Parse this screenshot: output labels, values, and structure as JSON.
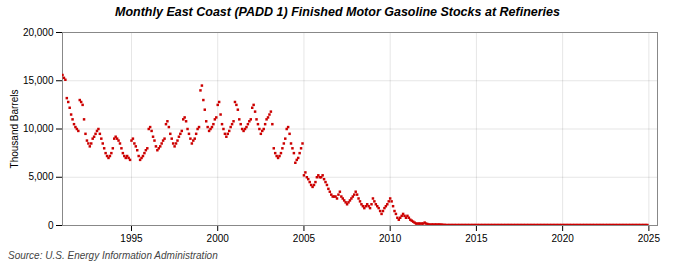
{
  "chart_data": {
    "type": "scatter",
    "title": "Monthly East Coast (PADD 1) Finished Motor Gasoline Stocks at Refineries",
    "y_label": "Thousand Barrels",
    "annotations": [
      "Source: U.S. Energy Information Administration"
    ],
    "color": "#cc0000",
    "marker": "square",
    "grid": true,
    "xlim": [
      1991.0,
      2025.5
    ],
    "xticks": [
      1995,
      2000,
      2005,
      2010,
      2015,
      2020,
      2025
    ],
    "ylim": [
      0,
      20000
    ],
    "yticks": [
      0,
      {
        "value": 5000,
        "label": "5,000"
      },
      {
        "value": 10000,
        "label": "10,000"
      },
      {
        "value": 15000,
        "label": "15,000"
      },
      {
        "value": 20000,
        "label": "20,000"
      }
    ],
    "x": [
      1991.0,
      1991.083,
      1991.167,
      1991.25,
      1991.333,
      1991.417,
      1991.5,
      1991.583,
      1991.667,
      1991.75,
      1991.833,
      1991.917,
      1992.0,
      1992.083,
      1992.167,
      1992.25,
      1992.333,
      1992.417,
      1992.5,
      1992.583,
      1992.667,
      1992.75,
      1992.833,
      1992.917,
      1993.0,
      1993.083,
      1993.167,
      1993.25,
      1993.333,
      1993.417,
      1993.5,
      1993.583,
      1993.667,
      1993.75,
      1993.833,
      1993.917,
      1994.0,
      1994.083,
      1994.167,
      1994.25,
      1994.333,
      1994.417,
      1994.5,
      1994.583,
      1994.667,
      1994.75,
      1994.833,
      1994.917,
      1995.0,
      1995.083,
      1995.167,
      1995.25,
      1995.333,
      1995.417,
      1995.5,
      1995.583,
      1995.667,
      1995.75,
      1995.833,
      1995.917,
      1996.0,
      1996.083,
      1996.167,
      1996.25,
      1996.333,
      1996.417,
      1996.5,
      1996.583,
      1996.667,
      1996.75,
      1996.833,
      1996.917,
      1997.0,
      1997.083,
      1997.167,
      1997.25,
      1997.333,
      1997.417,
      1997.5,
      1997.583,
      1997.667,
      1997.75,
      1997.833,
      1997.917,
      1998.0,
      1998.083,
      1998.167,
      1998.25,
      1998.333,
      1998.417,
      1998.5,
      1998.583,
      1998.667,
      1998.75,
      1998.833,
      1998.917,
      1999.0,
      1999.083,
      1999.167,
      1999.25,
      1999.333,
      1999.417,
      1999.5,
      1999.583,
      1999.667,
      1999.75,
      1999.833,
      1999.917,
      2000.0,
      2000.083,
      2000.167,
      2000.25,
      2000.333,
      2000.417,
      2000.5,
      2000.583,
      2000.667,
      2000.75,
      2000.833,
      2000.917,
      2001.0,
      2001.083,
      2001.167,
      2001.25,
      2001.333,
      2001.417,
      2001.5,
      2001.583,
      2001.667,
      2001.75,
      2001.833,
      2001.917,
      2002.0,
      2002.083,
      2002.167,
      2002.25,
      2002.333,
      2002.417,
      2002.5,
      2002.583,
      2002.667,
      2002.75,
      2002.833,
      2002.917,
      2003.0,
      2003.083,
      2003.167,
      2003.25,
      2003.333,
      2003.417,
      2003.5,
      2003.583,
      2003.667,
      2003.75,
      2003.833,
      2003.917,
      2004.0,
      2004.083,
      2004.167,
      2004.25,
      2004.333,
      2004.417,
      2004.5,
      2004.583,
      2004.667,
      2004.75,
      2004.833,
      2004.917,
      2005.0,
      2005.083,
      2005.167,
      2005.25,
      2005.333,
      2005.417,
      2005.5,
      2005.583,
      2005.667,
      2005.75,
      2005.833,
      2005.917,
      2006.0,
      2006.083,
      2006.167,
      2006.25,
      2006.333,
      2006.417,
      2006.5,
      2006.583,
      2006.667,
      2006.75,
      2006.833,
      2006.917,
      2007.0,
      2007.083,
      2007.167,
      2007.25,
      2007.333,
      2007.417,
      2007.5,
      2007.583,
      2007.667,
      2007.75,
      2007.833,
      2007.917,
      2008.0,
      2008.083,
      2008.167,
      2008.25,
      2008.333,
      2008.417,
      2008.5,
      2008.583,
      2008.667,
      2008.75,
      2008.833,
      2008.917,
      2009.0,
      2009.083,
      2009.167,
      2009.25,
      2009.333,
      2009.417,
      2009.5,
      2009.583,
      2009.667,
      2009.75,
      2009.833,
      2009.917,
      2010.0,
      2010.083,
      2010.167,
      2010.25,
      2010.333,
      2010.417,
      2010.5,
      2010.583,
      2010.667,
      2010.75,
      2010.833,
      2010.917,
      2011.0,
      2011.083,
      2011.167,
      2011.25,
      2011.333,
      2011.417,
      2011.5,
      2011.583,
      2011.667,
      2011.75,
      2011.833,
      2011.917,
      2012.0,
      2012.083,
      2012.167,
      2012.25,
      2012.333,
      2012.417,
      2012.5,
      2012.583,
      2012.667,
      2012.75,
      2012.833,
      2012.917,
      2013.0,
      2013.083,
      2013.167,
      2013.25,
      2013.333,
      2013.417,
      2013.5,
      2013.583,
      2013.667,
      2013.75,
      2013.833,
      2013.917,
      2014.0,
      2014.083,
      2014.167,
      2014.25,
      2014.333,
      2014.417,
      2014.5,
      2014.583,
      2014.667,
      2014.75,
      2014.833,
      2014.917,
      2015.0,
      2015.083,
      2015.167,
      2015.25,
      2015.333,
      2015.417,
      2015.5,
      2015.583,
      2015.667,
      2015.75,
      2015.833,
      2015.917,
      2016.0,
      2016.083,
      2016.167,
      2016.25,
      2016.333,
      2016.417,
      2016.5,
      2016.583,
      2016.667,
      2016.75,
      2016.833,
      2016.917,
      2017.0,
      2017.083,
      2017.167,
      2017.25,
      2017.333,
      2017.417,
      2017.5,
      2017.583,
      2017.667,
      2017.75,
      2017.833,
      2017.917,
      2018.0,
      2018.083,
      2018.167,
      2018.25,
      2018.333,
      2018.417,
      2018.5,
      2018.583,
      2018.667,
      2018.75,
      2018.833,
      2018.917,
      2019.0,
      2019.083,
      2019.167,
      2019.25,
      2019.333,
      2019.417,
      2019.5,
      2019.583,
      2019.667,
      2019.75,
      2019.833,
      2019.917,
      2020.0,
      2020.083,
      2020.167,
      2020.25,
      2020.333,
      2020.417,
      2020.5,
      2020.583,
      2020.667,
      2020.75,
      2020.833,
      2020.917,
      2021.0,
      2021.083,
      2021.167,
      2021.25,
      2021.333,
      2021.417,
      2021.5,
      2021.583,
      2021.667,
      2021.75,
      2021.833,
      2021.917,
      2022.0,
      2022.083,
      2022.167,
      2022.25,
      2022.333,
      2022.417,
      2022.5,
      2022.583,
      2022.667,
      2022.75,
      2022.833,
      2022.917,
      2023.0,
      2023.083,
      2023.167,
      2023.25,
      2023.333,
      2023.417,
      2023.5,
      2023.583,
      2023.667,
      2023.75,
      2023.833,
      2023.917,
      2024.0,
      2024.083,
      2024.167,
      2024.25,
      2024.333,
      2024.417,
      2024.5,
      2024.583,
      2024.667,
      2024.75,
      2024.833,
      2024.917
    ],
    "values": [
      15600,
      15300,
      15100,
      13200,
      12800,
      12200,
      11500,
      11000,
      10500,
      10200,
      10000,
      9800,
      13000,
      12800,
      12500,
      11000,
      9500,
      8800,
      8500,
      8200,
      8500,
      9000,
      9200,
      9500,
      9800,
      10000,
      9500,
      9000,
      8500,
      8000,
      7500,
      7200,
      7000,
      7200,
      7500,
      8000,
      9000,
      9200,
      9000,
      8800,
      8500,
      8000,
      7500,
      7200,
      7000,
      7200,
      7000,
      6800,
      8800,
      9000,
      8500,
      8200,
      7800,
      7200,
      6800,
      7000,
      7200,
      7500,
      7800,
      8000,
      10000,
      10200,
      9800,
      9200,
      8800,
      8200,
      7800,
      8000,
      8200,
      8500,
      8800,
      9000,
      10500,
      10800,
      10200,
      9500,
      9000,
      8500,
      8200,
      8500,
      8800,
      9200,
      9500,
      9800,
      11000,
      11200,
      10800,
      10000,
      9500,
      9000,
      8500,
      8800,
      9000,
      9500,
      10000,
      10200,
      14000,
      14500,
      13000,
      12000,
      10800,
      10200,
      9800,
      10000,
      10200,
      10500,
      11000,
      11200,
      12500,
      12800,
      11500,
      10500,
      10000,
      9500,
      9200,
      9500,
      9800,
      10200,
      10500,
      10800,
      12800,
      12500,
      12000,
      11000,
      10500,
      10000,
      9800,
      10000,
      10200,
      10500,
      10800,
      11000,
      12200,
      12500,
      11800,
      11000,
      10500,
      10000,
      9500,
      9800,
      10000,
      10500,
      11000,
      11200,
      11500,
      11800,
      10500,
      8000,
      7500,
      7200,
      7000,
      7200,
      7500,
      8000,
      8500,
      9000,
      10000,
      10200,
      9500,
      8500,
      8000,
      7500,
      6500,
      6800,
      7000,
      7500,
      8000,
      8500,
      5200,
      5500,
      5000,
      4800,
      4500,
      4200,
      4000,
      4200,
      4500,
      5000,
      5200,
      5000,
      5000,
      5200,
      4800,
      4500,
      4200,
      3800,
      3500,
      3200,
      3000,
      3000,
      3000,
      2800,
      3200,
      3500,
      3000,
      2800,
      2600,
      2400,
      2200,
      2400,
      2600,
      2800,
      3000,
      3200,
      3500,
      3200,
      2800,
      2500,
      2200,
      2000,
      1800,
      2000,
      2200,
      2000,
      1800,
      2200,
      2800,
      2500,
      2200,
      2000,
      1800,
      1500,
      1200,
      1500,
      1800,
      2000,
      2200,
      2500,
      2800,
      2500,
      2000,
      1500,
      1200,
      800,
      600,
      800,
      1000,
      1200,
      1000,
      800,
      1000,
      800,
      600,
      500,
      400,
      300,
      200,
      200,
      200,
      200,
      200,
      200,
      300,
      200,
      150,
      100,
      100,
      100,
      100,
      100,
      100,
      100,
      100,
      100,
      80,
      70,
      60,
      50,
      50,
      50,
      50,
      50,
      50,
      50,
      50,
      50,
      50,
      50,
      50,
      50,
      50,
      50,
      50,
      50,
      50,
      50,
      50,
      50,
      50,
      50,
      50,
      50,
      50,
      50,
      50,
      50,
      50,
      50,
      50,
      50,
      50,
      50,
      50,
      50,
      50,
      50,
      50,
      50,
      50,
      50,
      50,
      50,
      50,
      50,
      50,
      50,
      50,
      50,
      50,
      50,
      50,
      50,
      50,
      50,
      50,
      50,
      50,
      50,
      50,
      50,
      50,
      50,
      50,
      50,
      50,
      50,
      50,
      50,
      50,
      50,
      50,
      50,
      50,
      50,
      50,
      50,
      50,
      50,
      50,
      50,
      50,
      50,
      50,
      50,
      50,
      50,
      50,
      50,
      50,
      50,
      50,
      50,
      50,
      50,
      50,
      50,
      50,
      50,
      50,
      50,
      50,
      50,
      50,
      50,
      50,
      50,
      50,
      50,
      50,
      50,
      50,
      50,
      50,
      50,
      50,
      50,
      50,
      50,
      50,
      50,
      50,
      50,
      50,
      50,
      50,
      50,
      50,
      50,
      50,
      50,
      50,
      50,
      50,
      50,
      50,
      50,
      50,
      50
    ]
  }
}
